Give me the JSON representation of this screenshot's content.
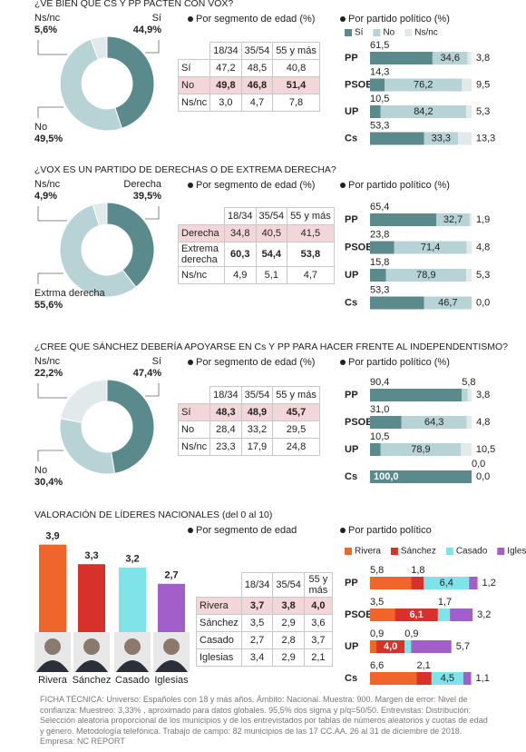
{
  "sections": [
    {
      "title": "¿VE BIEN QUE CS Y PP PACTEN CON VOX?",
      "donut": {
        "type": "pie",
        "categories": [
          "Sí",
          "No",
          "Ns/nc"
        ],
        "values": [
          44.9,
          49.5,
          5.6
        ],
        "value_labels": [
          "44,9%",
          "49,5%",
          "5,6%"
        ],
        "colors": [
          "#5b8a8c",
          "#b7d3d6",
          "#e1e9eb"
        ]
      },
      "age": {
        "title": "Por segmento de edad (%)",
        "columns": [
          "18/34",
          "35/54",
          "55 y más"
        ],
        "rows": [
          {
            "label": "Sí",
            "cells": [
              "47,2",
              "48,5",
              "40,8"
            ]
          },
          {
            "label": "No",
            "cells": [
              "49,8",
              "46,8",
              "51,4"
            ],
            "highlight": true,
            "bold": true
          },
          {
            "label": "Ns/nc",
            "cells": [
              "3,0",
              "4,7",
              "7,8"
            ]
          }
        ]
      },
      "party": {
        "type": "stacked-bar",
        "title": "Por partido político (%)",
        "categories": [
          "PP",
          "PSOE",
          "UP",
          "Cs"
        ],
        "series": [
          {
            "name": "Sí",
            "color": "#5b8a8c",
            "values": [
              61.5,
              14.3,
              10.5,
              53.3
            ],
            "value_labels": [
              "61,5",
              "14,3",
              "10,5",
              "53,3"
            ]
          },
          {
            "name": "No",
            "color": "#b7d3d6",
            "values": [
              34.6,
              76.2,
              84.2,
              33.3
            ],
            "value_labels": [
              "34,6",
              "76,2",
              "84,2",
              "33,3"
            ]
          },
          {
            "name": "Ns/nc",
            "color": "#e1e9eb",
            "values": [
              3.8,
              9.5,
              5.3,
              13.3
            ],
            "value_labels": [
              "3,8",
              "9,5",
              "5,3",
              "13,3"
            ]
          }
        ]
      }
    },
    {
      "title": "¿VOX ES UN PARTIDO DE DERECHAS O DE EXTREMA DERECHA?",
      "donut": {
        "type": "pie",
        "categories": [
          "Derecha",
          "Extrma derecha",
          "Ns/nc"
        ],
        "values": [
          39.5,
          55.6,
          4.9
        ],
        "value_labels": [
          "39,5%",
          "55,6%",
          "4,9%"
        ],
        "colors": [
          "#5b8a8c",
          "#b7d3d6",
          "#e1e9eb"
        ]
      },
      "age": {
        "title": "Por segmento de edad (%)",
        "columns": [
          "18/34",
          "35/54",
          "55 y más"
        ],
        "rows": [
          {
            "label": "Derecha",
            "cells": [
              "34,8",
              "40,5",
              "41,5"
            ],
            "highlight": true
          },
          {
            "label": "Extrema derecha",
            "cells": [
              "60,3",
              "54,4",
              "53,8"
            ],
            "bold": true
          },
          {
            "label": "Ns/nc",
            "cells": [
              "4,9",
              "5,1",
              "4,7"
            ]
          }
        ]
      },
      "party": {
        "type": "stacked-bar",
        "title": "Por partido político (%)",
        "categories": [
          "PP",
          "PSOE",
          "UP",
          "Cs"
        ],
        "series": [
          {
            "color": "#5b8a8c",
            "values": [
              65.4,
              23.8,
              15.8,
              53.3
            ],
            "value_labels": [
              "65,4",
              "23,8",
              "15,8",
              "53,3"
            ]
          },
          {
            "color": "#b7d3d6",
            "values": [
              32.7,
              71.4,
              78.9,
              46.7
            ],
            "value_labels": [
              "32,7",
              "71,4",
              "78,9",
              "46,7"
            ]
          },
          {
            "color": "#e1e9eb",
            "values": [
              1.9,
              4.8,
              5.3,
              0.0
            ],
            "value_labels": [
              "1,9",
              "4,8",
              "5,3",
              "0,0"
            ]
          }
        ]
      }
    },
    {
      "title": "¿CREE QUE SÁNCHEZ DEBERÍA APOYARSE EN Cs Y PP PARA HACER FRENTE AL INDEPENDENTISMO?",
      "donut": {
        "type": "pie",
        "categories": [
          "Sí",
          "No",
          "Ns/nc"
        ],
        "values": [
          47.4,
          30.4,
          22.2
        ],
        "value_labels": [
          "47,4%",
          "30,4%",
          "22,2%"
        ],
        "colors": [
          "#5b8a8c",
          "#b7d3d6",
          "#e1e9eb"
        ]
      },
      "age": {
        "title": "Por segmento de edad (%)",
        "columns": [
          "18/34",
          "35/54",
          "55 y más"
        ],
        "rows": [
          {
            "label": "Sí",
            "cells": [
              "48,3",
              "48,9",
              "45,7"
            ],
            "highlight": true,
            "bold": true
          },
          {
            "label": "No",
            "cells": [
              "28,4",
              "33,2",
              "29,5"
            ]
          },
          {
            "label": "Ns/nc",
            "cells": [
              "23,3",
              "17,9",
              "24,8"
            ]
          }
        ]
      },
      "party": {
        "type": "stacked-bar",
        "title": "Por partido político (%)",
        "categories": [
          "PP",
          "PSOE",
          "UP",
          "Cs"
        ],
        "series": [
          {
            "color": "#5b8a8c",
            "values": [
              90.4,
              31.0,
              10.5,
              100.0
            ],
            "value_labels": [
              "90,4",
              "31,0",
              "10,5",
              "100,0"
            ]
          },
          {
            "color": "#b7d3d6",
            "values": [
              5.8,
              64.3,
              78.9,
              0.0
            ],
            "value_labels": [
              "5,8",
              "64,3",
              "78,9",
              "0,0"
            ]
          },
          {
            "color": "#e1e9eb",
            "values": [
              3.8,
              4.8,
              10.5,
              0.0
            ],
            "value_labels": [
              "3,8",
              "4,8",
              "10,5",
              "0,0"
            ]
          }
        ]
      }
    },
    {
      "title": "VALORACIÓN DE LÍDERES NACIONALES (del 0 al 10)",
      "leaders": {
        "type": "bar",
        "categories": [
          "Rivera",
          "Sánchez",
          "Casado",
          "Iglesias"
        ],
        "values": [
          3.9,
          3.3,
          3.2,
          2.7
        ],
        "value_labels": [
          "3,9",
          "3,3",
          "3,2",
          "2,7"
        ],
        "colors": [
          "#f0652a",
          "#d8312b",
          "#80e3ea",
          "#a25fc9"
        ]
      },
      "age": {
        "title": "Por segmento de edad",
        "columns": [
          "18/34",
          "35/54",
          "55 y más"
        ],
        "rows": [
          {
            "label": "Rivera",
            "cells": [
              "3,7",
              "3,8",
              "4,0"
            ],
            "highlight": true,
            "bold": true
          },
          {
            "label": "Sánchez",
            "cells": [
              "3,5",
              "2,9",
              "3,6"
            ]
          },
          {
            "label": "Casado",
            "cells": [
              "2,7",
              "2,8",
              "3,7"
            ]
          },
          {
            "label": "Iglesias",
            "cells": [
              "3,4",
              "2,9",
              "2,1"
            ]
          }
        ]
      },
      "party": {
        "type": "stacked-bar",
        "title": "Por partido político",
        "categories": [
          "PP",
          "PSOE",
          "UP",
          "Cs"
        ],
        "series": [
          {
            "name": "Rivera",
            "color": "#f0652a",
            "values": [
              5.8,
              3.5,
              0.9,
              6.6
            ],
            "value_labels": [
              "5,8",
              "3,5",
              "0,9",
              "6,6"
            ]
          },
          {
            "name": "Sánchez",
            "color": "#d8312b",
            "values": [
              1.8,
              6.1,
              4.0,
              2.1
            ],
            "value_labels": [
              "1,8",
              "6,1",
              "4,0",
              "2,1"
            ]
          },
          {
            "name": "Casado",
            "color": "#80e3ea",
            "values": [
              6.4,
              1.7,
              0.9,
              4.5
            ],
            "value_labels": [
              "6,4",
              "1,7",
              "0,9",
              "4,5"
            ]
          },
          {
            "name": "Iglesias",
            "color": "#a25fc9",
            "values": [
              1.2,
              3.2,
              5.7,
              1.1
            ],
            "value_labels": [
              "1,2",
              "3,2",
              "5,7",
              "1,1"
            ]
          }
        ]
      }
    }
  ],
  "footer": {
    "text": "FICHA TÉCNICA: Universo: Españoles con 18 y más años. Ámbito: Nacional. Muestra: 900. Margen de error: Nivel de confianza: Muestreo: 3,33% , aproximado para datos globales. 95,5% dos sigma y p/q=50/50. Entrevistas: Distribución: Selección aleatoria proporcional de los municipios y de los entrevistados por tablas de números aleatorios y cuotas de edad y género. Metodología telefónica. Trabajo de campo: 82 municipios de las 17 CC.AA. 26 al 31 de diciembre de 2018.",
    "company": "Empresa: NC REPORT"
  }
}
